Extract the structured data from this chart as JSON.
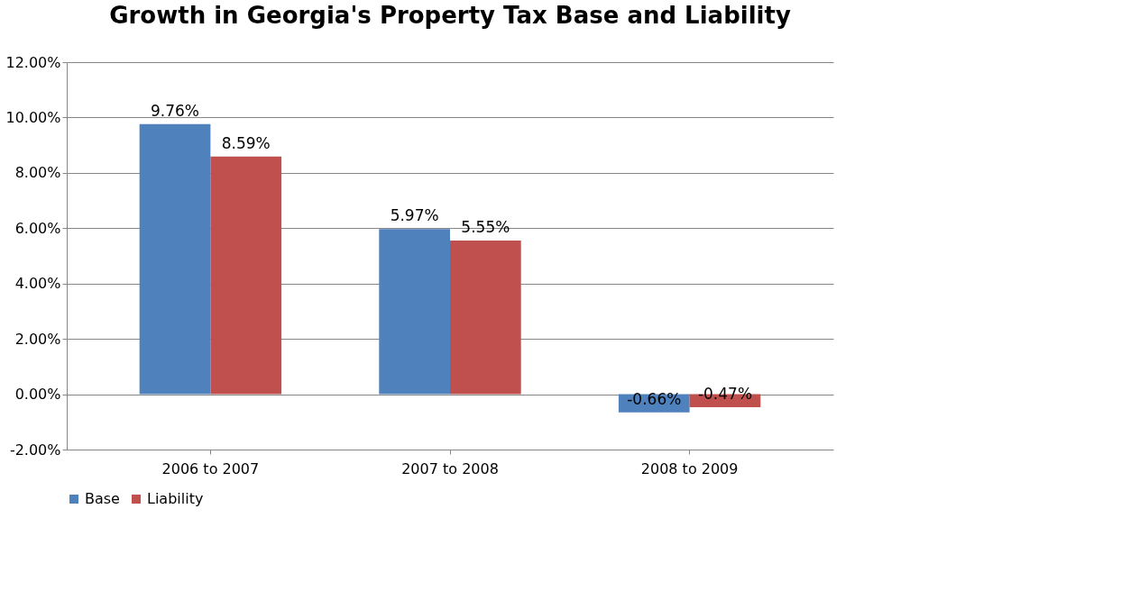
{
  "chart_data": {
    "type": "bar",
    "title": "Growth in Georgia's Property Tax Base and Liability",
    "categories": [
      "2006 to 2007",
      "2007 to 2008",
      "2008 to 2009"
    ],
    "series": [
      {
        "name": "Base",
        "color": "#4f81bd",
        "values": [
          9.76,
          5.97,
          -0.66
        ],
        "value_labels": [
          "9.76%",
          "5.97%",
          "-0.66%"
        ]
      },
      {
        "name": "Liability",
        "color": "#c0504d",
        "values": [
          8.59,
          5.55,
          -0.47
        ],
        "value_labels": [
          "8.59%",
          "5.55%",
          "-0.47%"
        ]
      }
    ],
    "ylim": [
      -2,
      12
    ],
    "yticks": [
      {
        "value": -2,
        "label": "-2.00%"
      },
      {
        "value": 0,
        "label": "0.00%"
      },
      {
        "value": 2,
        "label": "2.00%"
      },
      {
        "value": 4,
        "label": "4.00%"
      },
      {
        "value": 6,
        "label": "6.00%"
      },
      {
        "value": 8,
        "label": "8.00%"
      },
      {
        "value": 10,
        "label": "10.00%"
      },
      {
        "value": 12,
        "label": "12.00%"
      }
    ],
    "grid": "y",
    "legend": "bottom"
  }
}
